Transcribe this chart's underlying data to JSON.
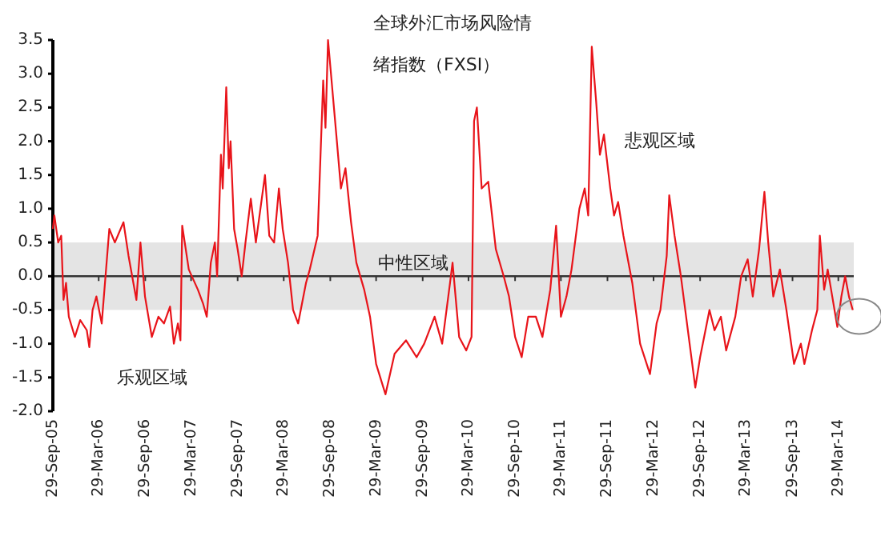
{
  "chart_data": {
    "type": "line",
    "title": "全球外汇市场风险情绪指数（FXSI）",
    "annotations": [
      "悲观区域",
      "乐观区域"
    ],
    "bands": [
      {
        "axis": "y",
        "from": -0.5,
        "to": 0.5,
        "label": "中性区域",
        "color": "#e4e4e4"
      }
    ],
    "xlim": [
      "2005-09-29",
      "2014-05-29"
    ],
    "ylim": [
      -2.0,
      3.5
    ],
    "yticks": [
      {
        "value": -2,
        "label": "-2.0"
      },
      {
        "value": -1.5,
        "label": "-1.5"
      },
      {
        "value": -1,
        "label": "-1.0"
      },
      {
        "value": -0.5,
        "label": "-0.5"
      },
      {
        "value": 0,
        "label": "0.0"
      },
      {
        "value": 0.5,
        "label": "0.5"
      },
      {
        "value": 1,
        "label": "1.0"
      },
      {
        "value": 1.5,
        "label": "1.5"
      },
      {
        "value": 2,
        "label": "2.0"
      },
      {
        "value": 2.5,
        "label": "2.5"
      },
      {
        "value": 3,
        "label": "3.0"
      },
      {
        "value": 3.5,
        "label": "3.5"
      }
    ],
    "xticks": [
      {
        "value": "2005-09-29",
        "label": "29-Sep-05"
      },
      {
        "value": "2006-03-29",
        "label": "29-Mar-06"
      },
      {
        "value": "2006-09-29",
        "label": "29-Sep-06"
      },
      {
        "value": "2007-03-29",
        "label": "29-Mar-07"
      },
      {
        "value": "2007-09-29",
        "label": "29-Sep-07"
      },
      {
        "value": "2008-03-29",
        "label": "29-Mar-08"
      },
      {
        "value": "2008-09-29",
        "label": "29-Sep-08"
      },
      {
        "value": "2009-03-29",
        "label": "29-Mar-09"
      },
      {
        "value": "2009-09-29",
        "label": "29-Sep-09"
      },
      {
        "value": "2010-03-29",
        "label": "29-Mar-10"
      },
      {
        "value": "2010-09-29",
        "label": "29-Sep-10"
      },
      {
        "value": "2011-03-29",
        "label": "29-Mar-11"
      },
      {
        "value": "2011-09-29",
        "label": "29-Sep-11"
      },
      {
        "value": "2012-03-29",
        "label": "29-Mar-12"
      },
      {
        "value": "2012-09-29",
        "label": "29-Sep-12"
      },
      {
        "value": "2013-03-29",
        "label": "29-Mar-13"
      },
      {
        "value": "2013-09-29",
        "label": "29-Sep-13"
      },
      {
        "value": "2014-03-29",
        "label": "29-Mar-14"
      }
    ],
    "marker": "none",
    "line_style": "solid",
    "series": [
      {
        "color": "#e8141a",
        "x": [
          "2005-09-29",
          "2005-10-05",
          "2005-10-20",
          "2005-11-01",
          "2005-11-10",
          "2005-11-20",
          "2005-12-01",
          "2005-12-25",
          "2006-01-15",
          "2006-02-10",
          "2006-02-20",
          "2006-03-05",
          "2006-03-20",
          "2006-04-10",
          "2006-05-10",
          "2006-06-01",
          "2006-07-05",
          "2006-07-25",
          "2006-08-25",
          "2006-09-10",
          "2006-09-28",
          "2006-10-25",
          "2006-11-20",
          "2006-12-12",
          "2007-01-05",
          "2007-01-20",
          "2007-02-05",
          "2007-02-15",
          "2007-02-22",
          "2007-03-20",
          "2007-04-25",
          "2007-05-15",
          "2007-05-30",
          "2007-06-15",
          "2007-07-01",
          "2007-07-10",
          "2007-07-25",
          "2007-08-01",
          "2007-08-15",
          "2007-08-25",
          "2007-09-01",
          "2007-09-15",
          "2007-09-29",
          "2007-10-15",
          "2007-10-30",
          "2007-11-20",
          "2007-12-10",
          "2008-01-15",
          "2008-02-01",
          "2008-02-20",
          "2008-03-10",
          "2008-03-25",
          "2008-04-15",
          "2008-05-05",
          "2008-05-25",
          "2008-06-25",
          "2008-07-10",
          "2008-08-10",
          "2008-09-01",
          "2008-09-10",
          "2008-09-20",
          "2008-10-25",
          "2008-11-10",
          "2008-11-28",
          "2008-12-20",
          "2009-01-10",
          "2009-02-10",
          "2009-03-05",
          "2009-03-29",
          "2009-05-05",
          "2009-06-10",
          "2009-07-25",
          "2009-09-05",
          "2009-10-05",
          "2009-11-15",
          "2009-12-15",
          "2010-01-15",
          "2010-01-25",
          "2010-02-20",
          "2010-03-20",
          "2010-04-10",
          "2010-04-20",
          "2010-05-01",
          "2010-05-20",
          "2010-06-15",
          "2010-07-15",
          "2010-08-15",
          "2010-09-05",
          "2010-09-29",
          "2010-10-25",
          "2010-11-20",
          "2010-12-20",
          "2011-01-15",
          "2011-02-15",
          "2011-03-10",
          "2011-03-29",
          "2011-04-20",
          "2011-05-10",
          "2011-06-10",
          "2011-07-01",
          "2011-07-15",
          "2011-07-29",
          "2011-08-15",
          "2011-08-30",
          "2011-09-15",
          "2011-10-10",
          "2011-10-25",
          "2011-11-10",
          "2011-12-01",
          "2012-01-05",
          "2012-02-05",
          "2012-03-15",
          "2012-04-10",
          "2012-04-25",
          "2012-05-20",
          "2012-05-30",
          "2012-06-20",
          "2012-07-15",
          "2012-08-15",
          "2012-09-10",
          "2012-09-29",
          "2012-11-05",
          "2012-11-25",
          "2012-12-20",
          "2013-01-10",
          "2013-02-15",
          "2013-03-10",
          "2013-04-05",
          "2013-04-25",
          "2013-05-20",
          "2013-06-10",
          "2013-06-25",
          "2013-07-15",
          "2013-08-10",
          "2013-09-05",
          "2013-10-05",
          "2013-11-01",
          "2013-11-15",
          "2013-12-15",
          "2014-01-05",
          "2014-01-15",
          "2014-02-01",
          "2014-02-15",
          "2014-03-05",
          "2014-03-25",
          "2014-04-10",
          "2014-04-25",
          "2014-05-10",
          "2014-05-25"
        ],
        "values": [
          0.7,
          0.9,
          0.5,
          0.6,
          -0.35,
          -0.1,
          -0.6,
          -0.9,
          -0.65,
          -0.8,
          -1.05,
          -0.5,
          -0.3,
          -0.7,
          0.7,
          0.5,
          0.8,
          0.3,
          -0.35,
          0.5,
          -0.3,
          -0.9,
          -0.6,
          -0.7,
          -0.45,
          -1.0,
          -0.7,
          -0.95,
          0.75,
          0.1,
          -0.2,
          -0.4,
          -0.6,
          0.2,
          0.5,
          0.0,
          1.8,
          1.3,
          2.8,
          1.6,
          2.0,
          0.7,
          0.4,
          0.0,
          0.5,
          1.15,
          0.5,
          1.5,
          0.6,
          0.5,
          1.3,
          0.7,
          0.2,
          -0.5,
          -0.7,
          -0.1,
          0.1,
          0.6,
          2.9,
          2.2,
          3.5,
          2.0,
          1.3,
          1.6,
          0.8,
          0.2,
          -0.2,
          -0.6,
          -1.3,
          -1.75,
          -1.15,
          -0.95,
          -1.2,
          -1.0,
          -0.6,
          -1.0,
          -0.1,
          0.2,
          -0.9,
          -1.1,
          -0.9,
          2.3,
          2.5,
          1.3,
          1.4,
          0.4,
          0.0,
          -0.3,
          -0.9,
          -1.2,
          -0.6,
          -0.6,
          -0.9,
          -0.2,
          0.75,
          -0.6,
          -0.3,
          0.1,
          1.0,
          1.3,
          0.9,
          3.4,
          2.6,
          1.8,
          2.1,
          1.3,
          0.9,
          1.1,
          0.6,
          -0.1,
          -1.0,
          -1.45,
          -0.7,
          -0.5,
          0.3,
          1.2,
          0.6,
          0.0,
          -0.9,
          -1.65,
          -1.2,
          -0.5,
          -0.8,
          -0.6,
          -1.1,
          -0.6,
          0.0,
          0.25,
          -0.3,
          0.4,
          1.25,
          0.5,
          -0.3,
          0.1,
          -0.5,
          -1.3,
          -1.0,
          -1.3,
          -0.8,
          -0.5,
          0.6,
          -0.2,
          0.1,
          -0.3,
          -0.75,
          -0.3,
          0.0,
          -0.3,
          -0.5
        ]
      }
    ]
  }
}
